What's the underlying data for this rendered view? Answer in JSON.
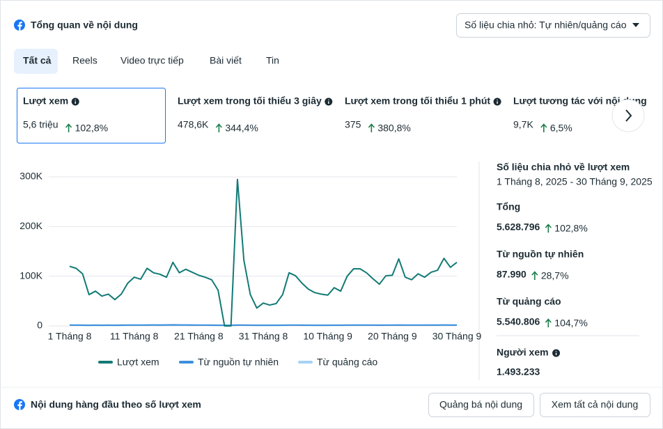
{
  "header": {
    "title": "Tổng quan về nội dung",
    "dropdown": "Số liệu chia nhỏ: Tự nhiên/quảng cáo"
  },
  "tabs": [
    "Tất cả",
    "Reels",
    "Video trực tiếp",
    "Bài viết",
    "Tin"
  ],
  "metrics": [
    {
      "label": "Lượt xem",
      "value": "5,6 triệu",
      "change": "102,8%"
    },
    {
      "label": "Lượt xem trong tối thiểu 3 giây",
      "value": "478,6K",
      "change": "344,4%"
    },
    {
      "label": "Lượt xem trong tối thiểu 1 phút",
      "value": "375",
      "change": "380,8%"
    },
    {
      "label": "Lượt tương tác với nội dung",
      "value": "9,7K",
      "change": "6,5%"
    }
  ],
  "chart_data": {
    "type": "line",
    "categories": [
      "1 Tháng 8",
      null,
      null,
      null,
      null,
      null,
      null,
      null,
      null,
      null,
      "11 Tháng 8",
      null,
      null,
      null,
      null,
      null,
      null,
      null,
      null,
      null,
      "21 Tháng 8",
      null,
      null,
      null,
      null,
      null,
      null,
      null,
      null,
      null,
      "31 Tháng 8",
      null,
      null,
      null,
      null,
      null,
      null,
      null,
      null,
      null,
      "10 Tháng 9",
      null,
      null,
      null,
      null,
      null,
      null,
      null,
      null,
      null,
      "20 Tháng 9",
      null,
      null,
      null,
      null,
      null,
      null,
      null,
      null,
      null,
      "30 Tháng 9"
    ],
    "series": [
      {
        "name": "Lượt xem",
        "color": "#127a76",
        "values": [
          120000,
          116000,
          105000,
          63000,
          70000,
          60000,
          64000,
          53000,
          64000,
          86000,
          98000,
          94000,
          116000,
          107000,
          104000,
          98000,
          128000,
          107000,
          114000,
          108000,
          102000,
          98000,
          93000,
          72000,
          0,
          0,
          295000,
          132000,
          63000,
          36000,
          46000,
          42000,
          45000,
          63000,
          107000,
          101000,
          86000,
          74000,
          67000,
          64000,
          62000,
          77000,
          70000,
          100000,
          115000,
          115000,
          107000,
          95000,
          84000,
          101000,
          102000,
          135000,
          98000,
          93000,
          105000,
          98000,
          108000,
          112000,
          136000,
          118000,
          128000
        ]
      },
      {
        "name": "Từ nguồn tự nhiên",
        "color": "#3d8fdb",
        "values": [
          1500,
          1500,
          1400,
          1300,
          1400,
          1300,
          1400,
          1300,
          1400,
          1500,
          1600,
          1500,
          1600,
          1700,
          1600,
          1700,
          1900,
          1800,
          1700,
          1600,
          1500,
          1500,
          1400,
          1300,
          1200,
          1200,
          1600,
          1500,
          1400,
          1300,
          1300,
          1300,
          1300,
          1400,
          1500,
          1500,
          1400,
          1400,
          1300,
          1300,
          1300,
          1400,
          1400,
          1500,
          1600,
          1600,
          1500,
          1500,
          1400,
          1500,
          1500,
          1600,
          1500,
          1500,
          1500,
          1500,
          1600,
          1600,
          1700,
          1600,
          1600
        ]
      },
      {
        "name": "Từ quảng cáo",
        "color": "#a6d3f5",
        "values": [
          2000,
          2000,
          1900,
          1800,
          1900,
          1800,
          1900,
          1800,
          1900,
          2000,
          2100,
          2000,
          2200,
          2300,
          2200,
          2400,
          2700,
          2500,
          2300,
          2200,
          2000,
          2000,
          1900,
          1700,
          1500,
          1500,
          2100,
          2000,
          1800,
          1700,
          1700,
          1700,
          1700,
          1800,
          2000,
          2000,
          1900,
          1800,
          1800,
          1700,
          1700,
          1800,
          1800,
          2000,
          2100,
          2100,
          2000,
          2000,
          1900,
          2000,
          2000,
          2200,
          2000,
          2000,
          2000,
          2000,
          2100,
          2100,
          2300,
          2100,
          2200
        ]
      }
    ],
    "ylim": [
      0,
      300000
    ],
    "yticks": [
      0,
      {
        "value": 100000,
        "label": "100K"
      },
      {
        "value": 200000,
        "label": "200K"
      },
      {
        "value": 300000,
        "label": "300K"
      }
    ],
    "grid": true
  },
  "breakdown": {
    "title": "Số liệu chia nhỏ về lượt xem",
    "date_range": "1 Tháng 8, 2025 - 30 Tháng 9, 2025",
    "items": [
      {
        "label": "Tổng",
        "value": "5.628.796",
        "change": "102,8%"
      },
      {
        "label": "Từ nguồn tự nhiên",
        "value": "87.990",
        "change": "28,7%"
      },
      {
        "label": "Từ quảng cáo",
        "value": "5.540.806",
        "change": "104,7%"
      }
    ],
    "viewers": {
      "label": "Người xem",
      "value": "1.493.233"
    }
  },
  "footer": {
    "title": "Nội dung hàng đầu theo số lượt xem",
    "buttons": [
      "Quảng bá nội dung",
      "Xem tất cả nội dung"
    ]
  }
}
